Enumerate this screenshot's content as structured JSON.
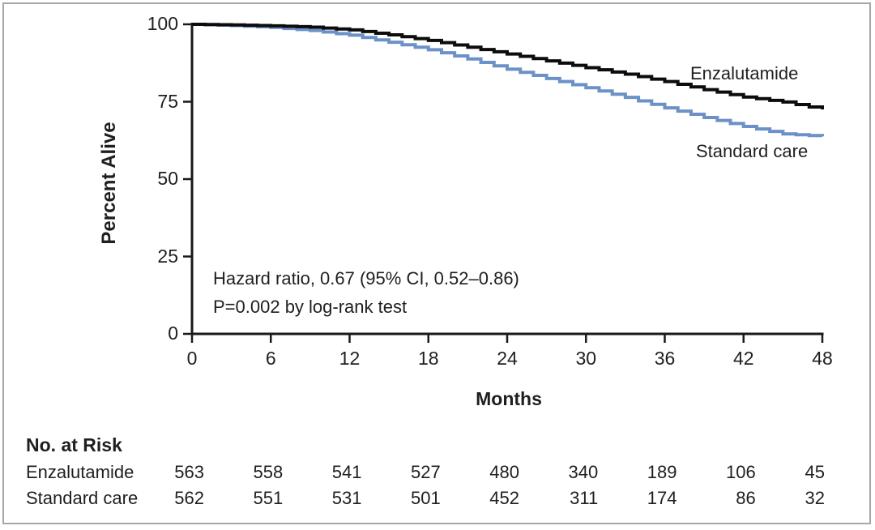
{
  "chart_data": {
    "type": "line",
    "subtype": "kaplan-meier-step",
    "title": "",
    "xlabel": "Months",
    "ylabel": "Percent Alive",
    "xlim": [
      0,
      48
    ],
    "ylim": [
      0,
      100
    ],
    "x_ticks": [
      0,
      6,
      12,
      18,
      24,
      30,
      36,
      42,
      48
    ],
    "y_ticks": [
      0,
      25,
      50,
      75,
      100
    ],
    "grid": false,
    "legend_position": "inline-right-of-curves",
    "series": [
      {
        "name": "Enzalutamide",
        "color": "#0c0c0c",
        "months": [
          0,
          3,
          6,
          9,
          12,
          15,
          18,
          21,
          24,
          27,
          30,
          33,
          36,
          39,
          42,
          45,
          48
        ],
        "percent_alive": [
          100,
          99.8,
          99.5,
          99.1,
          98.2,
          96.6,
          94.8,
          92.6,
          90.4,
          88.2,
          86.0,
          83.9,
          81.5,
          78.9,
          76.5,
          74.9,
          72.5
        ]
      },
      {
        "name": "Standard care",
        "color": "#6c91c8",
        "months": [
          0,
          3,
          6,
          9,
          12,
          15,
          18,
          21,
          24,
          27,
          30,
          33,
          36,
          39,
          42,
          45,
          48
        ],
        "percent_alive": [
          100,
          99.6,
          99.0,
          98.0,
          96.5,
          94.2,
          91.8,
          88.8,
          85.5,
          82.5,
          79.5,
          76.4,
          73.0,
          69.9,
          67.0,
          64.6,
          63.8
        ]
      }
    ],
    "annotations": [
      "Hazard ratio, 0.67 (95% CI, 0.52–0.86)",
      "P=0.002 by log-rank test"
    ]
  },
  "risk_table": {
    "title": "No. at Risk",
    "months": [
      0,
      6,
      12,
      18,
      24,
      30,
      36,
      42,
      48
    ],
    "rows": [
      {
        "label": "Enzalutamide",
        "values": [
          563,
          558,
          541,
          527,
          480,
          340,
          189,
          106,
          45
        ]
      },
      {
        "label": "Standard care",
        "values": [
          562,
          551,
          531,
          501,
          452,
          311,
          174,
          86,
          32
        ]
      }
    ]
  },
  "colors": {
    "frame_border": "#a7a7a7",
    "axis": "#1a1a1a",
    "text": "#1f1f1f",
    "enzalutamide_curve": "#0c0c0c",
    "standard_care_curve": "#6c91c8"
  }
}
